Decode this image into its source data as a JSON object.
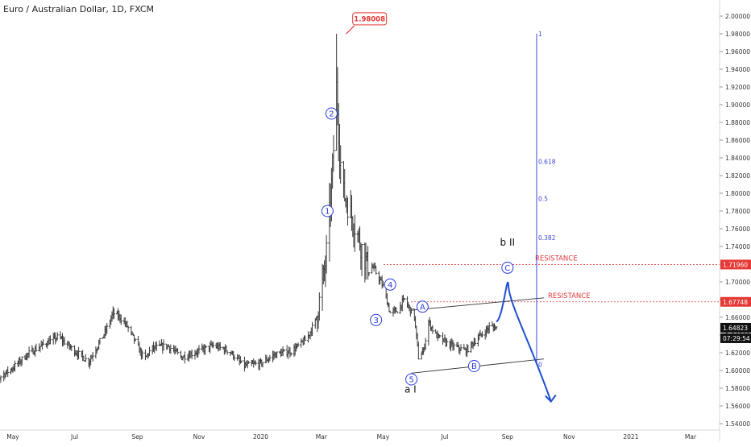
{
  "header": {
    "title": "Euro / Australian Dollar, 1D, FXCM"
  },
  "chart_data": {
    "type": "line",
    "title": "Euro / Australian Dollar, 1D, FXCM",
    "subtitle": "",
    "xlabel": "",
    "ylabel": "",
    "y_range": [
      1.532,
      2.012
    ],
    "y_ticks": [
      "2.00000",
      "1.98000",
      "1.96000",
      "1.94000",
      "1.92000",
      "1.90000",
      "1.88000",
      "1.86000",
      "1.84000",
      "1.82000",
      "1.80000",
      "1.78000",
      "1.76000",
      "1.74000",
      "1.72000",
      "1.70000",
      "1.68000",
      "1.66000",
      "1.64000",
      "1.62000",
      "1.60000",
      "1.58000",
      "1.56000",
      "1.54000"
    ],
    "x_ticks": [
      "May",
      "Jul",
      "Sep",
      "Nov",
      "2020",
      "Mar",
      "May",
      "Jul",
      "Sep",
      "Nov",
      "2021",
      "Mar"
    ],
    "x_tick_dates": [
      "2019-05-01",
      "2019-07-01",
      "2019-09-01",
      "2019-11-01",
      "2020-01-01",
      "2020-03-01",
      "2020-05-01",
      "2020-07-01",
      "2020-09-01",
      "2020-11-01",
      "2021-01-01",
      "2021-03-01"
    ],
    "x_range": [
      "2019-04-01",
      "2021-04-01"
    ],
    "grid": false,
    "legend": "none",
    "series": [
      {
        "name": "",
        "style": "ohlc bars",
        "color": "#333333",
        "x": [
          "2019-04-03",
          "2019-04-15",
          "2019-05-01",
          "2019-05-15",
          "2019-06-01",
          "2019-06-15",
          "2019-07-01",
          "2019-07-15",
          "2019-08-01",
          "2019-08-08",
          "2019-08-15",
          "2019-08-22",
          "2019-09-01",
          "2019-09-08",
          "2019-09-15",
          "2019-10-01",
          "2019-10-15",
          "2019-11-01",
          "2019-11-15",
          "2019-12-01",
          "2019-12-15",
          "2020-01-01",
          "2020-01-15",
          "2020-02-01",
          "2020-02-15",
          "2020-02-24",
          "2020-03-01",
          "2020-03-05",
          "2020-03-10",
          "2020-03-13",
          "2020-03-16",
          "2020-03-19",
          "2020-03-23",
          "2020-03-26",
          "2020-04-01",
          "2020-04-08",
          "2020-04-15",
          "2020-04-22",
          "2020-05-01",
          "2020-05-08",
          "2020-05-15",
          "2020-05-22",
          "2020-06-01",
          "2020-06-05",
          "2020-06-10",
          "2020-06-15",
          "2020-06-22",
          "2020-07-01",
          "2020-07-08",
          "2020-07-15",
          "2020-07-22",
          "2020-08-01",
          "2020-08-08",
          "2020-08-15",
          "2020-08-21"
        ],
        "y": [
          1.572,
          1.59,
          1.603,
          1.618,
          1.63,
          1.638,
          1.622,
          1.61,
          1.645,
          1.665,
          1.66,
          1.65,
          1.628,
          1.612,
          1.625,
          1.628,
          1.615,
          1.622,
          1.628,
          1.622,
          1.605,
          1.608,
          1.618,
          1.622,
          1.635,
          1.655,
          1.69,
          1.72,
          1.79,
          1.85,
          1.92,
          1.845,
          1.8,
          1.79,
          1.77,
          1.745,
          1.72,
          1.715,
          1.695,
          1.665,
          1.668,
          1.68,
          1.66,
          1.615,
          1.622,
          1.655,
          1.64,
          1.632,
          1.628,
          1.625,
          1.622,
          1.635,
          1.642,
          1.65,
          1.648
        ]
      }
    ],
    "annotations": {
      "peak_label": "1.98008",
      "peak_value": 1.98008,
      "waves": [
        {
          "label": "1",
          "date": "2020-03-07",
          "value": 1.78
        },
        {
          "label": "2",
          "date": "2020-03-11",
          "value": 1.89
        },
        {
          "label": "3",
          "date": "2020-04-24",
          "value": 1.657
        },
        {
          "label": "4",
          "date": "2020-05-08",
          "value": 1.697
        },
        {
          "label": "5",
          "date": "2020-05-29",
          "value": 1.59
        },
        {
          "label": "A",
          "date": "2020-06-09",
          "value": 1.672
        },
        {
          "label": "B",
          "date": "2020-07-30",
          "value": 1.605
        },
        {
          "label": "C",
          "date": "2020-09-01",
          "value": 1.716
        }
      ],
      "degree_labels": [
        {
          "label": "b II",
          "date": "2020-09-01",
          "value": 1.741
        },
        {
          "label": "a I",
          "date": "2020-05-28",
          "value": 1.575
        }
      ],
      "fib_levels": [
        {
          "label": "1",
          "value": 1.98
        },
        {
          "label": "0.618",
          "value": 1.836
        },
        {
          "label": "0.5",
          "value": 1.794
        },
        {
          "label": "0.382",
          "value": 1.75
        },
        {
          "label": "0",
          "value": 1.607
        }
      ],
      "resistance": [
        {
          "label": "RESISTANCE",
          "value": 1.7196,
          "price_label": "1.71960"
        },
        {
          "label": "RESISTANCE",
          "value": 1.67748,
          "price_label": "1.67748"
        }
      ],
      "current": {
        "price_label": "1.64823",
        "value": 1.64823,
        "countdown": "07:29:54"
      }
    }
  }
}
